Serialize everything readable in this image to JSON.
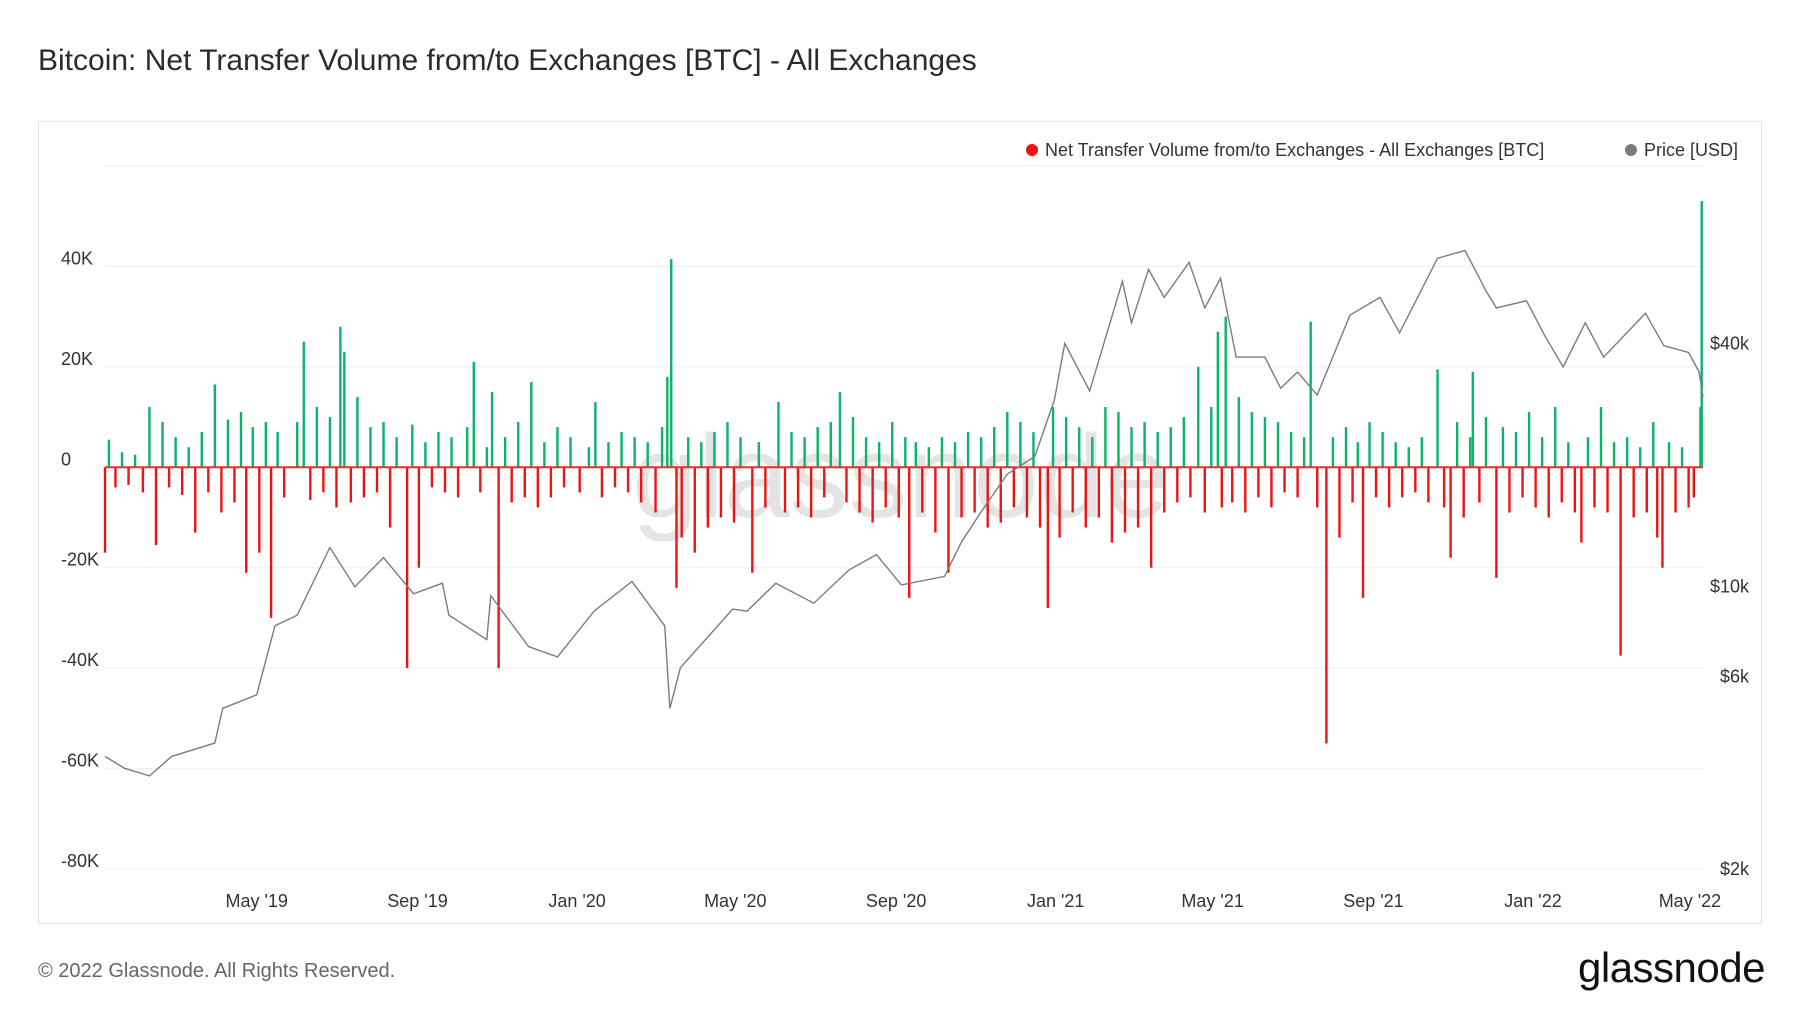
{
  "title": "Bitcoin: Net Transfer Volume from/to Exchanges [BTC] - All Exchanges",
  "footer": "© 2022 Glassnode. All Rights Reserved.",
  "logo_text": "glassnode",
  "watermark": "glassnode",
  "colors": {
    "inflow": "#0bb36b",
    "outflow": "#ee1313",
    "price": "#7c7c7c",
    "grid": "#efefef",
    "watermark": "#e4e4e4"
  },
  "chart_data": {
    "type": "bar",
    "title": "Bitcoin: Net Transfer Volume from/to Exchanges [BTC] - All Exchanges",
    "legend_placement": "top-right",
    "legend": [
      {
        "label": "Net Transfer Volume from/to Exchanges - All Exchanges [BTC]",
        "color": "#ee1313"
      },
      {
        "label": "Price [USD]",
        "color": "#7c7c7c"
      }
    ],
    "grid": true,
    "xlim": [
      "2019-01-05",
      "2022-05-11"
    ],
    "x_ticks": [
      {
        "date": "2019-05-01",
        "label": "May '19"
      },
      {
        "date": "2019-09-01",
        "label": "Sep '19"
      },
      {
        "date": "2020-01-01",
        "label": "Jan '20"
      },
      {
        "date": "2020-05-01",
        "label": "May '20"
      },
      {
        "date": "2020-09-01",
        "label": "Sep '20"
      },
      {
        "date": "2021-01-01",
        "label": "Jan '21"
      },
      {
        "date": "2021-05-01",
        "label": "May '21"
      },
      {
        "date": "2021-09-01",
        "label": "Sep '21"
      },
      {
        "date": "2022-01-01",
        "label": "Jan '22"
      },
      {
        "date": "2022-05-01",
        "label": "May '22"
      }
    ],
    "y_left": {
      "ylim": [
        -80000,
        60000
      ],
      "ticks": [
        {
          "value": 40000,
          "label": "40K"
        },
        {
          "value": 20000,
          "label": "20K"
        },
        {
          "value": 0,
          "label": "0"
        },
        {
          "value": -20000,
          "label": "-20K"
        },
        {
          "value": -40000,
          "label": "-40K"
        },
        {
          "value": -60000,
          "label": "-60K"
        },
        {
          "value": -80000,
          "label": "-80K"
        }
      ]
    },
    "y_right": {
      "scale": "log",
      "ylim": [
        2000,
        110000
      ],
      "ticks": [
        {
          "value": 40000,
          "label": "$40k"
        },
        {
          "value": 10000,
          "label": "$10k"
        },
        {
          "value": 6000,
          "label": "$6k"
        },
        {
          "value": 2000,
          "label": "$2k"
        }
      ]
    },
    "price": [
      [
        "2019-01-05",
        3800
      ],
      [
        "2019-01-20",
        3550
      ],
      [
        "2019-02-08",
        3400
      ],
      [
        "2019-02-25",
        3800
      ],
      [
        "2019-03-30",
        4100
      ],
      [
        "2019-04-05",
        5000
      ],
      [
        "2019-05-01",
        5400
      ],
      [
        "2019-05-15",
        8000
      ],
      [
        "2019-06-01",
        8500
      ],
      [
        "2019-06-26",
        12500
      ],
      [
        "2019-07-15",
        10000
      ],
      [
        "2019-08-06",
        11800
      ],
      [
        "2019-08-29",
        9600
      ],
      [
        "2019-09-20",
        10200
      ],
      [
        "2019-09-25",
        8500
      ],
      [
        "2019-10-24",
        7400
      ],
      [
        "2019-10-27",
        9500
      ],
      [
        "2019-11-25",
        7100
      ],
      [
        "2019-12-17",
        6700
      ],
      [
        "2020-01-14",
        8700
      ],
      [
        "2020-02-12",
        10300
      ],
      [
        "2020-03-08",
        8000
      ],
      [
        "2020-03-12",
        5000
      ],
      [
        "2020-03-20",
        6300
      ],
      [
        "2020-04-29",
        8800
      ],
      [
        "2020-05-10",
        8700
      ],
      [
        "2020-06-01",
        10200
      ],
      [
        "2020-06-30",
        9100
      ],
      [
        "2020-07-27",
        11000
      ],
      [
        "2020-08-17",
        12000
      ],
      [
        "2020-09-05",
        10100
      ],
      [
        "2020-10-08",
        10600
      ],
      [
        "2020-10-21",
        12900
      ],
      [
        "2020-11-06",
        15500
      ],
      [
        "2020-11-25",
        19000
      ],
      [
        "2020-12-16",
        21000
      ],
      [
        "2020-12-31",
        29000
      ],
      [
        "2021-01-08",
        40000
      ],
      [
        "2021-01-27",
        30500
      ],
      [
        "2021-02-21",
        57000
      ],
      [
        "2021-02-28",
        45000
      ],
      [
        "2021-03-13",
        61000
      ],
      [
        "2021-03-25",
        52000
      ],
      [
        "2021-04-13",
        63500
      ],
      [
        "2021-04-25",
        49000
      ],
      [
        "2021-05-07",
        58000
      ],
      [
        "2021-05-19",
        37000
      ],
      [
        "2021-06-10",
        37000
      ],
      [
        "2021-06-22",
        31000
      ],
      [
        "2021-07-05",
        34000
      ],
      [
        "2021-07-20",
        29800
      ],
      [
        "2021-08-14",
        47000
      ],
      [
        "2021-09-06",
        52000
      ],
      [
        "2021-09-21",
        42500
      ],
      [
        "2021-10-20",
        65000
      ],
      [
        "2021-11-10",
        68000
      ],
      [
        "2021-11-26",
        54000
      ],
      [
        "2021-12-04",
        49000
      ],
      [
        "2021-12-27",
        51000
      ],
      [
        "2022-01-10",
        41800
      ],
      [
        "2022-01-24",
        35000
      ],
      [
        "2022-02-10",
        45000
      ],
      [
        "2022-02-24",
        37000
      ],
      [
        "2022-03-28",
        47500
      ],
      [
        "2022-04-11",
        39500
      ],
      [
        "2022-04-30",
        38000
      ],
      [
        "2022-05-08",
        34000
      ],
      [
        "2022-05-11",
        29500
      ]
    ],
    "net_flow": [
      [
        "2019-01-05",
        -17000
      ],
      [
        "2019-01-08",
        5500
      ],
      [
        "2019-01-13",
        -4000
      ],
      [
        "2019-01-18",
        3000
      ],
      [
        "2019-01-23",
        -3500
      ],
      [
        "2019-01-28",
        2500
      ],
      [
        "2019-02-03",
        -5000
      ],
      [
        "2019-02-08",
        12000
      ],
      [
        "2019-02-13",
        -15500
      ],
      [
        "2019-02-18",
        9000
      ],
      [
        "2019-02-23",
        -4000
      ],
      [
        "2019-02-28",
        6000
      ],
      [
        "2019-03-05",
        -5500
      ],
      [
        "2019-03-10",
        4000
      ],
      [
        "2019-03-15",
        -13000
      ],
      [
        "2019-03-20",
        7000
      ],
      [
        "2019-03-25",
        -5000
      ],
      [
        "2019-03-30",
        16500
      ],
      [
        "2019-04-04",
        -9000
      ],
      [
        "2019-04-09",
        9500
      ],
      [
        "2019-04-14",
        -7000
      ],
      [
        "2019-04-19",
        11000
      ],
      [
        "2019-04-23",
        -21000
      ],
      [
        "2019-04-28",
        8000
      ],
      [
        "2019-05-03",
        -17000
      ],
      [
        "2019-05-08",
        9000
      ],
      [
        "2019-05-12",
        -30000
      ],
      [
        "2019-05-17",
        7000
      ],
      [
        "2019-05-22",
        -6000
      ],
      [
        "2019-06-01",
        9000
      ],
      [
        "2019-06-06",
        25000
      ],
      [
        "2019-06-11",
        -6500
      ],
      [
        "2019-06-16",
        12000
      ],
      [
        "2019-06-21",
        -5000
      ],
      [
        "2019-06-26",
        10000
      ],
      [
        "2019-07-01",
        -8000
      ],
      [
        "2019-07-04",
        28000
      ],
      [
        "2019-07-07",
        23000
      ],
      [
        "2019-07-12",
        -7000
      ],
      [
        "2019-07-17",
        14000
      ],
      [
        "2019-07-22",
        -6000
      ],
      [
        "2019-07-27",
        8000
      ],
      [
        "2019-08-01",
        -5000
      ],
      [
        "2019-08-06",
        9000
      ],
      [
        "2019-08-11",
        -12000
      ],
      [
        "2019-08-16",
        6000
      ],
      [
        "2019-08-24",
        -40000
      ],
      [
        "2019-08-28",
        8500
      ],
      [
        "2019-09-02",
        -20000
      ],
      [
        "2019-09-07",
        5000
      ],
      [
        "2019-09-12",
        -4000
      ],
      [
        "2019-09-17",
        7000
      ],
      [
        "2019-09-22",
        -5000
      ],
      [
        "2019-09-27",
        6000
      ],
      [
        "2019-10-02",
        -6000
      ],
      [
        "2019-10-09",
        8000
      ],
      [
        "2019-10-14",
        21000
      ],
      [
        "2019-10-19",
        -5000
      ],
      [
        "2019-10-24",
        4000
      ],
      [
        "2019-10-28",
        15000
      ],
      [
        "2019-11-02",
        -40000
      ],
      [
        "2019-11-07",
        6000
      ],
      [
        "2019-11-12",
        -7000
      ],
      [
        "2019-11-17",
        9000
      ],
      [
        "2019-11-22",
        -6000
      ],
      [
        "2019-11-27",
        17000
      ],
      [
        "2019-12-02",
        -8000
      ],
      [
        "2019-12-07",
        5000
      ],
      [
        "2019-12-12",
        -6000
      ],
      [
        "2019-12-17",
        8000
      ],
      [
        "2019-12-22",
        -4000
      ],
      [
        "2019-12-27",
        6000
      ],
      [
        "2020-01-03",
        -5000
      ],
      [
        "2020-01-10",
        4000
      ],
      [
        "2020-01-15",
        13000
      ],
      [
        "2020-01-20",
        -6000
      ],
      [
        "2020-01-25",
        5000
      ],
      [
        "2020-01-30",
        -4000
      ],
      [
        "2020-02-04",
        7000
      ],
      [
        "2020-02-09",
        -5000
      ],
      [
        "2020-02-14",
        6000
      ],
      [
        "2020-02-19",
        -7000
      ],
      [
        "2020-02-24",
        5000
      ],
      [
        "2020-03-01",
        -9000
      ],
      [
        "2020-03-06",
        8000
      ],
      [
        "2020-03-10",
        18000
      ],
      [
        "2020-03-13",
        41500
      ],
      [
        "2020-03-17",
        -24000
      ],
      [
        "2020-03-21",
        -14000
      ],
      [
        "2020-03-26",
        6000
      ],
      [
        "2020-03-31",
        -17000
      ],
      [
        "2020-04-05",
        5000
      ],
      [
        "2020-04-10",
        -12000
      ],
      [
        "2020-04-15",
        7000
      ],
      [
        "2020-04-20",
        -10000
      ],
      [
        "2020-04-25",
        9000
      ],
      [
        "2020-04-30",
        -11000
      ],
      [
        "2020-05-05",
        6000
      ],
      [
        "2020-05-14",
        -21000
      ],
      [
        "2020-05-19",
        5000
      ],
      [
        "2020-05-24",
        -8000
      ],
      [
        "2020-06-03",
        13000
      ],
      [
        "2020-06-08",
        -9000
      ],
      [
        "2020-06-13",
        7000
      ],
      [
        "2020-06-18",
        -8000
      ],
      [
        "2020-06-23",
        6000
      ],
      [
        "2020-06-28",
        -10000
      ],
      [
        "2020-07-03",
        8000
      ],
      [
        "2020-07-08",
        -6000
      ],
      [
        "2020-07-13",
        9000
      ],
      [
        "2020-07-20",
        15000
      ],
      [
        "2020-07-25",
        -7000
      ],
      [
        "2020-07-30",
        10000
      ],
      [
        "2020-08-04",
        -9000
      ],
      [
        "2020-08-09",
        6000
      ],
      [
        "2020-08-14",
        -11000
      ],
      [
        "2020-08-19",
        5000
      ],
      [
        "2020-08-24",
        -8000
      ],
      [
        "2020-08-29",
        9000
      ],
      [
        "2020-09-03",
        -10000
      ],
      [
        "2020-09-08",
        6000
      ],
      [
        "2020-09-11",
        -26000
      ],
      [
        "2020-09-16",
        5000
      ],
      [
        "2020-09-21",
        -9000
      ],
      [
        "2020-09-26",
        4000
      ],
      [
        "2020-10-01",
        -13000
      ],
      [
        "2020-10-06",
        6000
      ],
      [
        "2020-10-11",
        -21000
      ],
      [
        "2020-10-16",
        5000
      ],
      [
        "2020-10-21",
        -10000
      ],
      [
        "2020-10-26",
        7000
      ],
      [
        "2020-10-31",
        -9000
      ],
      [
        "2020-11-05",
        6000
      ],
      [
        "2020-11-10",
        -12000
      ],
      [
        "2020-11-15",
        8000
      ],
      [
        "2020-11-20",
        -11000
      ],
      [
        "2020-11-25",
        11000
      ],
      [
        "2020-11-30",
        -8000
      ],
      [
        "2020-12-05",
        9000
      ],
      [
        "2020-12-10",
        -10000
      ],
      [
        "2020-12-15",
        7000
      ],
      [
        "2020-12-20",
        -12000
      ],
      [
        "2020-12-26",
        -28000
      ],
      [
        "2020-12-30",
        12000
      ],
      [
        "2021-01-04",
        -14000
      ],
      [
        "2021-01-09",
        10000
      ],
      [
        "2021-01-14",
        -9000
      ],
      [
        "2021-01-19",
        8000
      ],
      [
        "2021-01-24",
        -12000
      ],
      [
        "2021-01-29",
        6000
      ],
      [
        "2021-02-03",
        -10000
      ],
      [
        "2021-02-08",
        12000
      ],
      [
        "2021-02-13",
        -15000
      ],
      [
        "2021-02-18",
        11000
      ],
      [
        "2021-02-23",
        -13000
      ],
      [
        "2021-02-28",
        8000
      ],
      [
        "2021-03-05",
        -12000
      ],
      [
        "2021-03-10",
        9000
      ],
      [
        "2021-03-15",
        -20000
      ],
      [
        "2021-03-20",
        7000
      ],
      [
        "2021-03-25",
        -9000
      ],
      [
        "2021-03-30",
        8000
      ],
      [
        "2021-04-04",
        -7000
      ],
      [
        "2021-04-09",
        10000
      ],
      [
        "2021-04-14",
        -6000
      ],
      [
        "2021-04-20",
        20000
      ],
      [
        "2021-04-25",
        -9000
      ],
      [
        "2021-04-30",
        12000
      ],
      [
        "2021-05-05",
        27000
      ],
      [
        "2021-05-08",
        -8000
      ],
      [
        "2021-05-11",
        30000
      ],
      [
        "2021-05-16",
        -7000
      ],
      [
        "2021-05-21",
        14000
      ],
      [
        "2021-05-26",
        -9000
      ],
      [
        "2021-05-31",
        11000
      ],
      [
        "2021-06-05",
        -6000
      ],
      [
        "2021-06-10",
        10000
      ],
      [
        "2021-06-15",
        -8000
      ],
      [
        "2021-06-20",
        9000
      ],
      [
        "2021-06-25",
        -5000
      ],
      [
        "2021-06-30",
        7000
      ],
      [
        "2021-07-05",
        -6000
      ],
      [
        "2021-07-10",
        6000
      ],
      [
        "2021-07-15",
        29000
      ],
      [
        "2021-07-20",
        -8000
      ],
      [
        "2021-07-27",
        -55000
      ],
      [
        "2021-08-01",
        6000
      ],
      [
        "2021-08-06",
        -14000
      ],
      [
        "2021-08-11",
        8000
      ],
      [
        "2021-08-16",
        -7000
      ],
      [
        "2021-08-20",
        5000
      ],
      [
        "2021-08-24",
        -26000
      ],
      [
        "2021-08-29",
        9000
      ],
      [
        "2021-09-03",
        -6000
      ],
      [
        "2021-09-08",
        7000
      ],
      [
        "2021-09-13",
        -8000
      ],
      [
        "2021-09-18",
        5000
      ],
      [
        "2021-09-23",
        -6000
      ],
      [
        "2021-09-28",
        4000
      ],
      [
        "2021-10-03",
        -5000
      ],
      [
        "2021-10-08",
        6000
      ],
      [
        "2021-10-13",
        -7000
      ],
      [
        "2021-10-20",
        19500
      ],
      [
        "2021-10-25",
        -8000
      ],
      [
        "2021-10-30",
        -18000
      ],
      [
        "2021-11-04",
        9000
      ],
      [
        "2021-11-09",
        -10000
      ],
      [
        "2021-11-14",
        6000
      ],
      [
        "2021-11-16",
        19000
      ],
      [
        "2021-11-21",
        -7000
      ],
      [
        "2021-11-26",
        10000
      ],
      [
        "2021-12-04",
        -22000
      ],
      [
        "2021-12-09",
        8000
      ],
      [
        "2021-12-14",
        -9000
      ],
      [
        "2021-12-19",
        7000
      ],
      [
        "2021-12-24",
        -6000
      ],
      [
        "2021-12-29",
        11000
      ],
      [
        "2022-01-03",
        -8000
      ],
      [
        "2022-01-08",
        6000
      ],
      [
        "2022-01-13",
        -10000
      ],
      [
        "2022-01-18",
        12000
      ],
      [
        "2022-01-23",
        -7000
      ],
      [
        "2022-01-28",
        5000
      ],
      [
        "2022-02-02",
        -9000
      ],
      [
        "2022-02-07",
        -15000
      ],
      [
        "2022-02-12",
        6000
      ],
      [
        "2022-02-17",
        -8000
      ],
      [
        "2022-02-22",
        12000
      ],
      [
        "2022-02-27",
        -9000
      ],
      [
        "2022-03-04",
        5000
      ],
      [
        "2022-03-09",
        -37500
      ],
      [
        "2022-03-14",
        6000
      ],
      [
        "2022-03-19",
        -10000
      ],
      [
        "2022-03-24",
        4000
      ],
      [
        "2022-03-29",
        -9000
      ],
      [
        "2022-04-03",
        9000
      ],
      [
        "2022-04-06",
        -14000
      ],
      [
        "2022-04-10",
        -20000
      ],
      [
        "2022-04-15",
        5000
      ],
      [
        "2022-04-20",
        -9000
      ],
      [
        "2022-04-25",
        4000
      ],
      [
        "2022-04-30",
        -8000
      ],
      [
        "2022-05-04",
        -6000
      ],
      [
        "2022-05-09",
        12000
      ],
      [
        "2022-05-10",
        53000
      ]
    ]
  }
}
